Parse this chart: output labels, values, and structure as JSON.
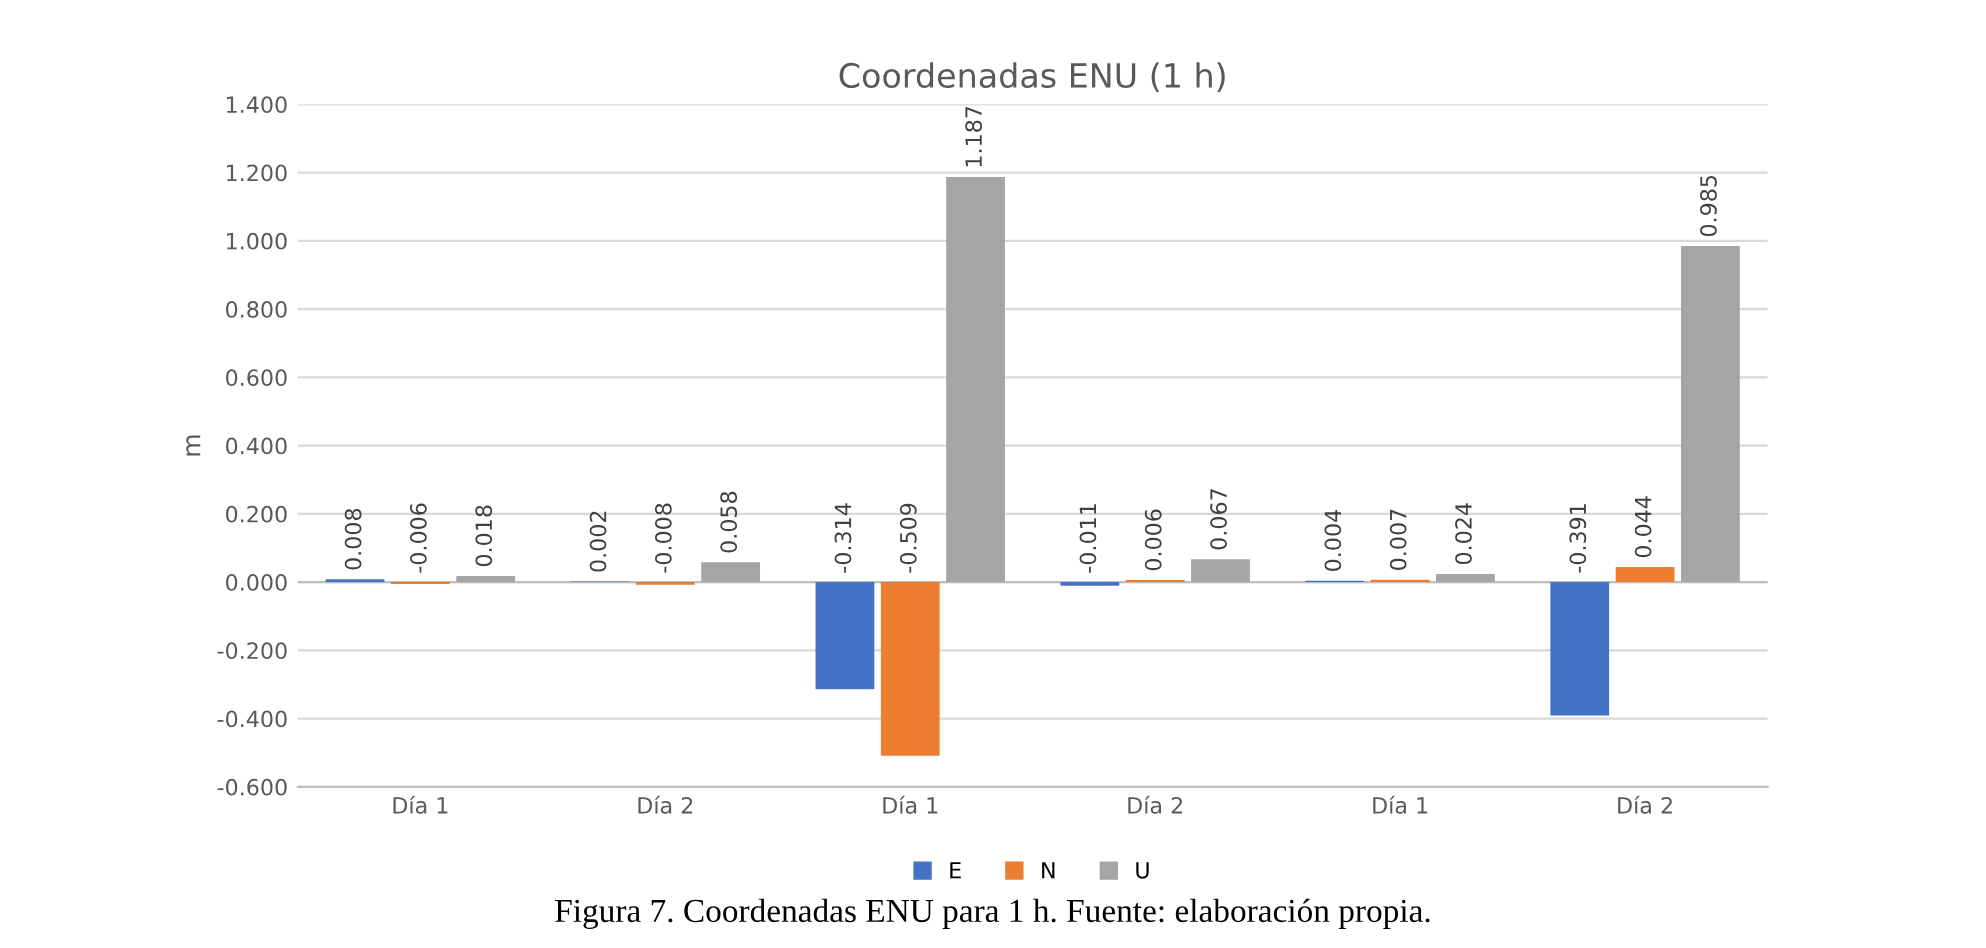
{
  "chart_data": {
    "type": "bar",
    "title": "Coordenadas ENU (1 h)",
    "ylabel": "m",
    "categories": [
      "Día 1",
      "Día 2",
      "Día 1",
      "Día 2",
      "Día 1",
      "Día 2"
    ],
    "series": [
      {
        "name": "E",
        "color": "#4472c4",
        "values": [
          0.008,
          0.002,
          -0.314,
          -0.011,
          0.004,
          -0.391
        ],
        "value_labels": [
          "0.008",
          "0.002",
          "-0.314",
          "-0.011",
          "0.004",
          "-0.391"
        ]
      },
      {
        "name": "N",
        "color": "#ed7d31",
        "values": [
          -0.006,
          -0.008,
          -0.509,
          0.006,
          0.007,
          0.044
        ],
        "value_labels": [
          "-0.006",
          "-0.008",
          "-0.509",
          "0.006",
          "0.007",
          "0.044"
        ]
      },
      {
        "name": "U",
        "color": "#a5a5a5",
        "values": [
          0.018,
          0.058,
          1.187,
          0.067,
          0.024,
          0.985
        ],
        "value_labels": [
          "0.018",
          "0.058",
          "1.187",
          "0.067",
          "0.024",
          "0.985"
        ]
      }
    ],
    "ylim": [
      -0.6,
      1.4
    ],
    "yticks": [
      {
        "value": -0.6,
        "label": "-0.600"
      },
      {
        "value": -0.4,
        "label": "-0.400"
      },
      {
        "value": -0.2,
        "label": "-0.200"
      },
      {
        "value": 0,
        "label": "0.000"
      },
      {
        "value": 0.2,
        "label": "0.200"
      },
      {
        "value": 0.4,
        "label": "0.400"
      },
      {
        "value": 0.6,
        "label": "0.600"
      },
      {
        "value": 0.8,
        "label": "0.800"
      },
      {
        "value": 1.0,
        "label": "1.000"
      },
      {
        "value": 1.2,
        "label": "1.200"
      },
      {
        "value": 1.4,
        "label": "1.400"
      }
    ],
    "grid": "y",
    "legend": "bottom",
    "annotations": [
      "Figura 7. Coordenadas ENU para 1 h. Fuente: elaboración propia."
    ]
  }
}
